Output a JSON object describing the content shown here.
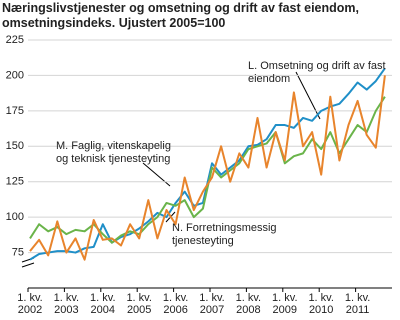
{
  "chart_data": {
    "type": "line",
    "title": "Næringslivstjenester og omsetning og drift av fast eiendom, omsetningsindeks. Ujustert 2005=100",
    "categories": [
      "1. kv. 2002",
      null,
      null,
      null,
      "1. kv. 2003",
      null,
      null,
      null,
      "1. kv. 2004",
      null,
      null,
      null,
      "1. kv. 2005",
      null,
      null,
      null,
      "1. kv. 2006",
      null,
      null,
      null,
      "1. kv. 2007",
      null,
      null,
      null,
      "1. kv. 2008",
      null,
      null,
      null,
      "1. kv. 2009",
      null,
      null,
      null,
      "1. kv. 2010",
      null,
      null,
      null,
      "1. kv. 2011",
      null,
      null,
      null
    ],
    "series": [
      {
        "name": "L. Omsetning og drift av fast eiendom",
        "color": "#1f8fc8",
        "values": [
          70,
          74,
          75,
          76,
          76,
          75,
          78,
          79,
          95,
          82,
          86,
          88,
          92,
          97,
          103,
          100,
          110,
          118,
          108,
          110,
          138,
          130,
          135,
          140,
          150,
          151,
          155,
          165,
          165,
          163,
          170,
          168,
          175,
          178,
          180,
          187,
          195,
          190,
          196,
          205
        ]
      },
      {
        "name": "M. Faglig, vitenskapelig og teknisk tjenesteyting",
        "color": "#6ab44a",
        "values": [
          85,
          95,
          90,
          93,
          88,
          91,
          90,
          95,
          88,
          82,
          87,
          90,
          88,
          95,
          100,
          110,
          108,
          112,
          100,
          106,
          135,
          128,
          133,
          138,
          148,
          150,
          152,
          160,
          138,
          143,
          145,
          155,
          148,
          160,
          145,
          155,
          165,
          160,
          175,
          185
        ]
      },
      {
        "name": "N. Forretningsmessig tjenesteyting",
        "color": "#e8842c",
        "values": [
          76,
          84,
          73,
          97,
          75,
          85,
          70,
          98,
          84,
          85,
          80,
          95,
          85,
          112,
          85,
          105,
          95,
          128,
          105,
          118,
          128,
          150,
          125,
          145,
          135,
          170,
          135,
          160,
          140,
          188,
          150,
          160,
          130,
          185,
          140,
          165,
          182,
          158,
          149,
          200
        ]
      }
    ],
    "ylim": [
      50,
      225
    ],
    "yticks": [
      75,
      100,
      125,
      150,
      175,
      200,
      225
    ],
    "grid": true
  }
}
